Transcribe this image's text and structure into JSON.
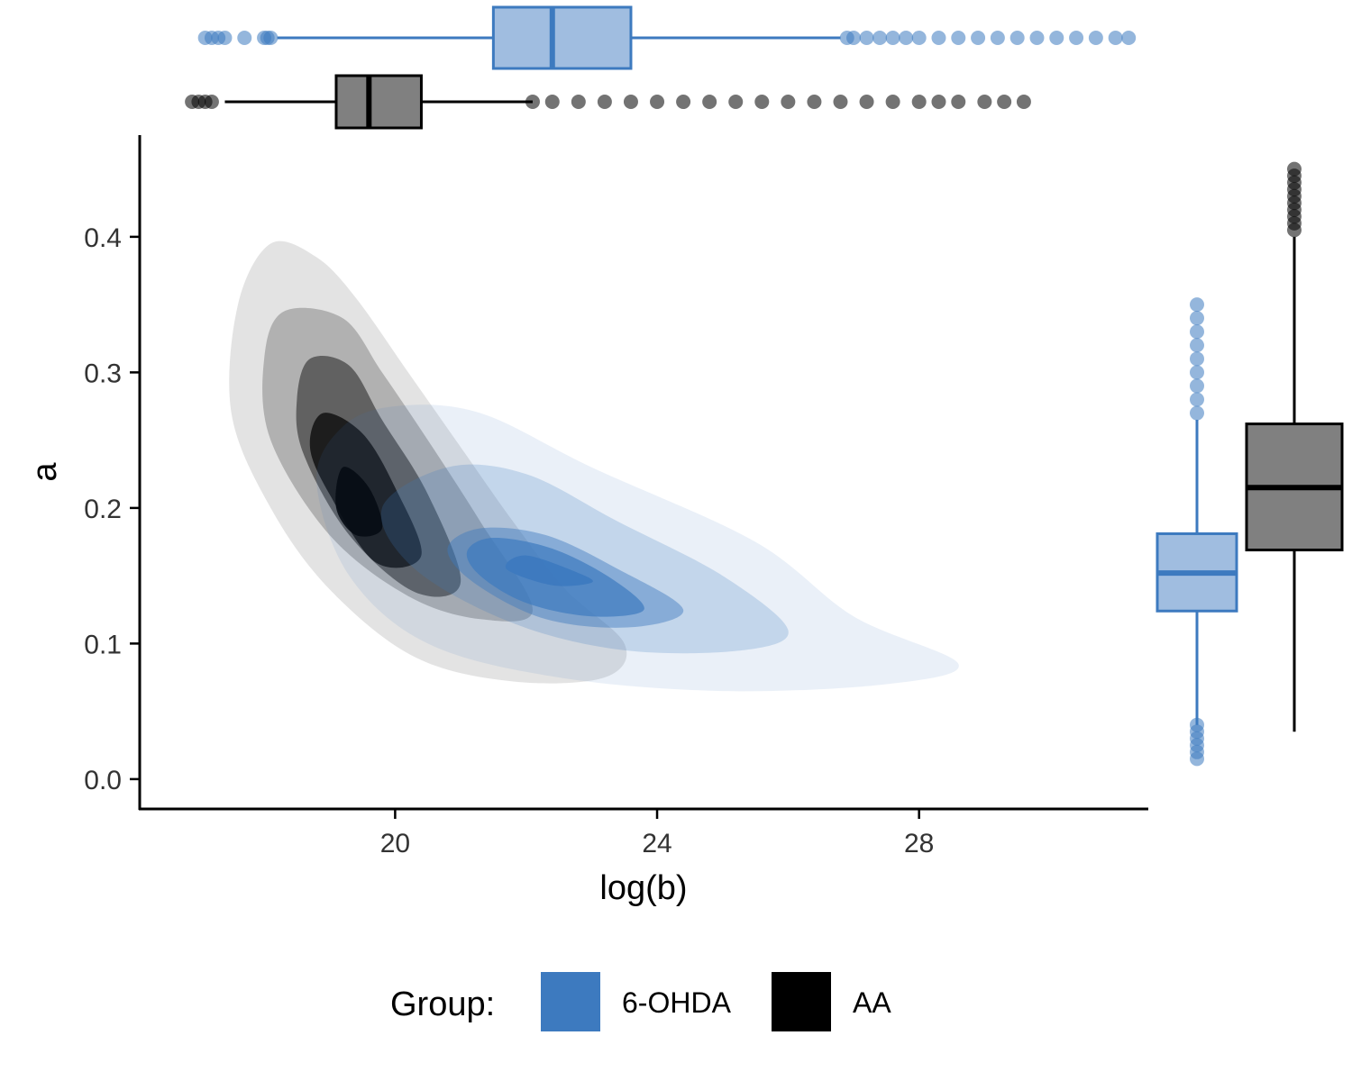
{
  "chart_data": {
    "type": "scatter",
    "subtype": "2d-density-with-marginal-boxplots",
    "title": "",
    "xlabel": "log(b)",
    "ylabel": "a",
    "xlim": [
      16.1,
      31.5
    ],
    "ylim": [
      -0.022,
      0.475
    ],
    "x_ticks": [
      20,
      24,
      28
    ],
    "x_tick_labels": [
      "20",
      "24",
      "28"
    ],
    "y_ticks": [
      0.0,
      0.1,
      0.2,
      0.3,
      0.4
    ],
    "y_tick_labels": [
      "0.0",
      "0.1",
      "0.2",
      "0.3",
      "0.4"
    ],
    "grid": false,
    "legend": {
      "title": "Group:",
      "position": "bottom",
      "entries": [
        {
          "label": "6-OHDA",
          "color": "#3d7abf"
        },
        {
          "label": "AA",
          "color": "#000000"
        }
      ]
    },
    "series": [
      {
        "name": "6-OHDA",
        "color": "#3d7abf",
        "box_fill": "#a0bde0",
        "density_peak": {
          "x": 22.3,
          "y": 0.155
        },
        "density_levels": [
          [
            [
              20.0,
              0.275
            ],
            [
              21.3,
              0.27
            ],
            [
              23.0,
              0.23
            ],
            [
              25.5,
              0.175
            ],
            [
              27.0,
              0.12
            ],
            [
              28.6,
              0.085
            ],
            [
              27.5,
              0.07
            ],
            [
              25.0,
              0.065
            ],
            [
              22.5,
              0.075
            ],
            [
              20.5,
              0.1
            ],
            [
              19.3,
              0.15
            ],
            [
              18.8,
              0.22
            ],
            [
              19.2,
              0.26
            ]
          ],
          [
            [
              20.8,
              0.23
            ],
            [
              22.0,
              0.225
            ],
            [
              23.4,
              0.19
            ],
            [
              25.0,
              0.15
            ],
            [
              26.0,
              0.11
            ],
            [
              25.3,
              0.095
            ],
            [
              23.5,
              0.095
            ],
            [
              21.8,
              0.115
            ],
            [
              20.3,
              0.155
            ],
            [
              19.8,
              0.2
            ]
          ],
          [
            [
              21.3,
              0.185
            ],
            [
              22.3,
              0.18
            ],
            [
              23.4,
              0.155
            ],
            [
              24.4,
              0.125
            ],
            [
              23.6,
              0.112
            ],
            [
              22.3,
              0.118
            ],
            [
              21.2,
              0.145
            ],
            [
              20.8,
              0.17
            ]
          ],
          [
            [
              21.5,
              0.178
            ],
            [
              22.4,
              0.17
            ],
            [
              23.3,
              0.148
            ],
            [
              23.8,
              0.125
            ],
            [
              23.0,
              0.12
            ],
            [
              22.0,
              0.13
            ],
            [
              21.3,
              0.15
            ],
            [
              21.1,
              0.168
            ]
          ],
          [
            [
              22.0,
              0.165
            ],
            [
              22.8,
              0.152
            ],
            [
              23.0,
              0.145
            ],
            [
              22.4,
              0.143
            ],
            [
              21.7,
              0.155
            ]
          ]
        ],
        "marginal_x_box": {
          "whisker_low": 18.2,
          "q1": 21.5,
          "median": 22.4,
          "q3": 23.6,
          "whisker_high": 26.8,
          "outliers": [
            17.1,
            17.2,
            17.3,
            17.4,
            17.7,
            18.0,
            18.05,
            18.1,
            26.9,
            27.0,
            27.2,
            27.4,
            27.6,
            27.8,
            28.0,
            28.3,
            28.6,
            28.9,
            29.2,
            29.5,
            29.8,
            30.1,
            30.4,
            30.7,
            31.0,
            31.2
          ]
        },
        "marginal_y_box": {
          "whisker_low": 0.04,
          "q1": 0.124,
          "median": 0.152,
          "q3": 0.181,
          "whisker_high": 0.265,
          "outliers": [
            0.015,
            0.02,
            0.025,
            0.03,
            0.035,
            0.04,
            0.27,
            0.28,
            0.29,
            0.3,
            0.31,
            0.32,
            0.33,
            0.34,
            0.35
          ]
        }
      },
      {
        "name": "AA",
        "color": "#000000",
        "box_fill": "#808080",
        "density_peak": {
          "x": 19.5,
          "y": 0.21
        },
        "density_levels": [
          [
            [
              18.1,
              0.395
            ],
            [
              18.8,
              0.385
            ],
            [
              19.4,
              0.355
            ],
            [
              20.2,
              0.3
            ],
            [
              21.0,
              0.245
            ],
            [
              21.8,
              0.19
            ],
            [
              22.6,
              0.14
            ],
            [
              23.5,
              0.1
            ],
            [
              23.2,
              0.075
            ],
            [
              21.8,
              0.072
            ],
            [
              20.3,
              0.09
            ],
            [
              19.0,
              0.14
            ],
            [
              18.1,
              0.2
            ],
            [
              17.5,
              0.27
            ],
            [
              17.6,
              0.35
            ]
          ],
          [
            [
              18.3,
              0.345
            ],
            [
              19.2,
              0.34
            ],
            [
              19.8,
              0.3
            ],
            [
              20.5,
              0.25
            ],
            [
              21.3,
              0.19
            ],
            [
              22.1,
              0.125
            ],
            [
              21.3,
              0.118
            ],
            [
              20.2,
              0.135
            ],
            [
              19.0,
              0.18
            ],
            [
              18.1,
              0.25
            ],
            [
              18.0,
              0.31
            ]
          ],
          [
            [
              18.7,
              0.31
            ],
            [
              19.3,
              0.305
            ],
            [
              19.8,
              0.265
            ],
            [
              20.5,
              0.21
            ],
            [
              21.0,
              0.145
            ],
            [
              20.3,
              0.138
            ],
            [
              19.3,
              0.18
            ],
            [
              18.6,
              0.24
            ],
            [
              18.5,
              0.28
            ]
          ],
          [
            [
              18.9,
              0.27
            ],
            [
              19.5,
              0.255
            ],
            [
              20.0,
              0.215
            ],
            [
              20.4,
              0.165
            ],
            [
              19.7,
              0.16
            ],
            [
              19.0,
              0.21
            ],
            [
              18.7,
              0.245
            ]
          ],
          [
            [
              19.2,
              0.23
            ],
            [
              19.6,
              0.215
            ],
            [
              19.8,
              0.185
            ],
            [
              19.4,
              0.18
            ],
            [
              19.1,
              0.2
            ]
          ]
        ],
        "marginal_x_box": {
          "whisker_low": 17.4,
          "q1": 19.1,
          "median": 19.6,
          "q3": 20.4,
          "whisker_high": 22.1,
          "outliers": [
            16.9,
            17.0,
            17.1,
            17.2,
            22.1,
            22.4,
            22.8,
            23.2,
            23.6,
            24.0,
            24.4,
            24.8,
            25.2,
            25.6,
            26.0,
            26.4,
            26.8,
            27.2,
            27.6,
            28.0,
            28.3,
            28.6,
            29.0,
            29.3,
            29.6
          ]
        },
        "marginal_y_box": {
          "whisker_low": 0.035,
          "q1": 0.169,
          "median": 0.215,
          "q3": 0.262,
          "whisker_high": 0.4,
          "outliers": [
            0.405,
            0.41,
            0.415,
            0.42,
            0.425,
            0.43,
            0.435,
            0.44,
            0.445,
            0.45
          ]
        }
      }
    ]
  }
}
